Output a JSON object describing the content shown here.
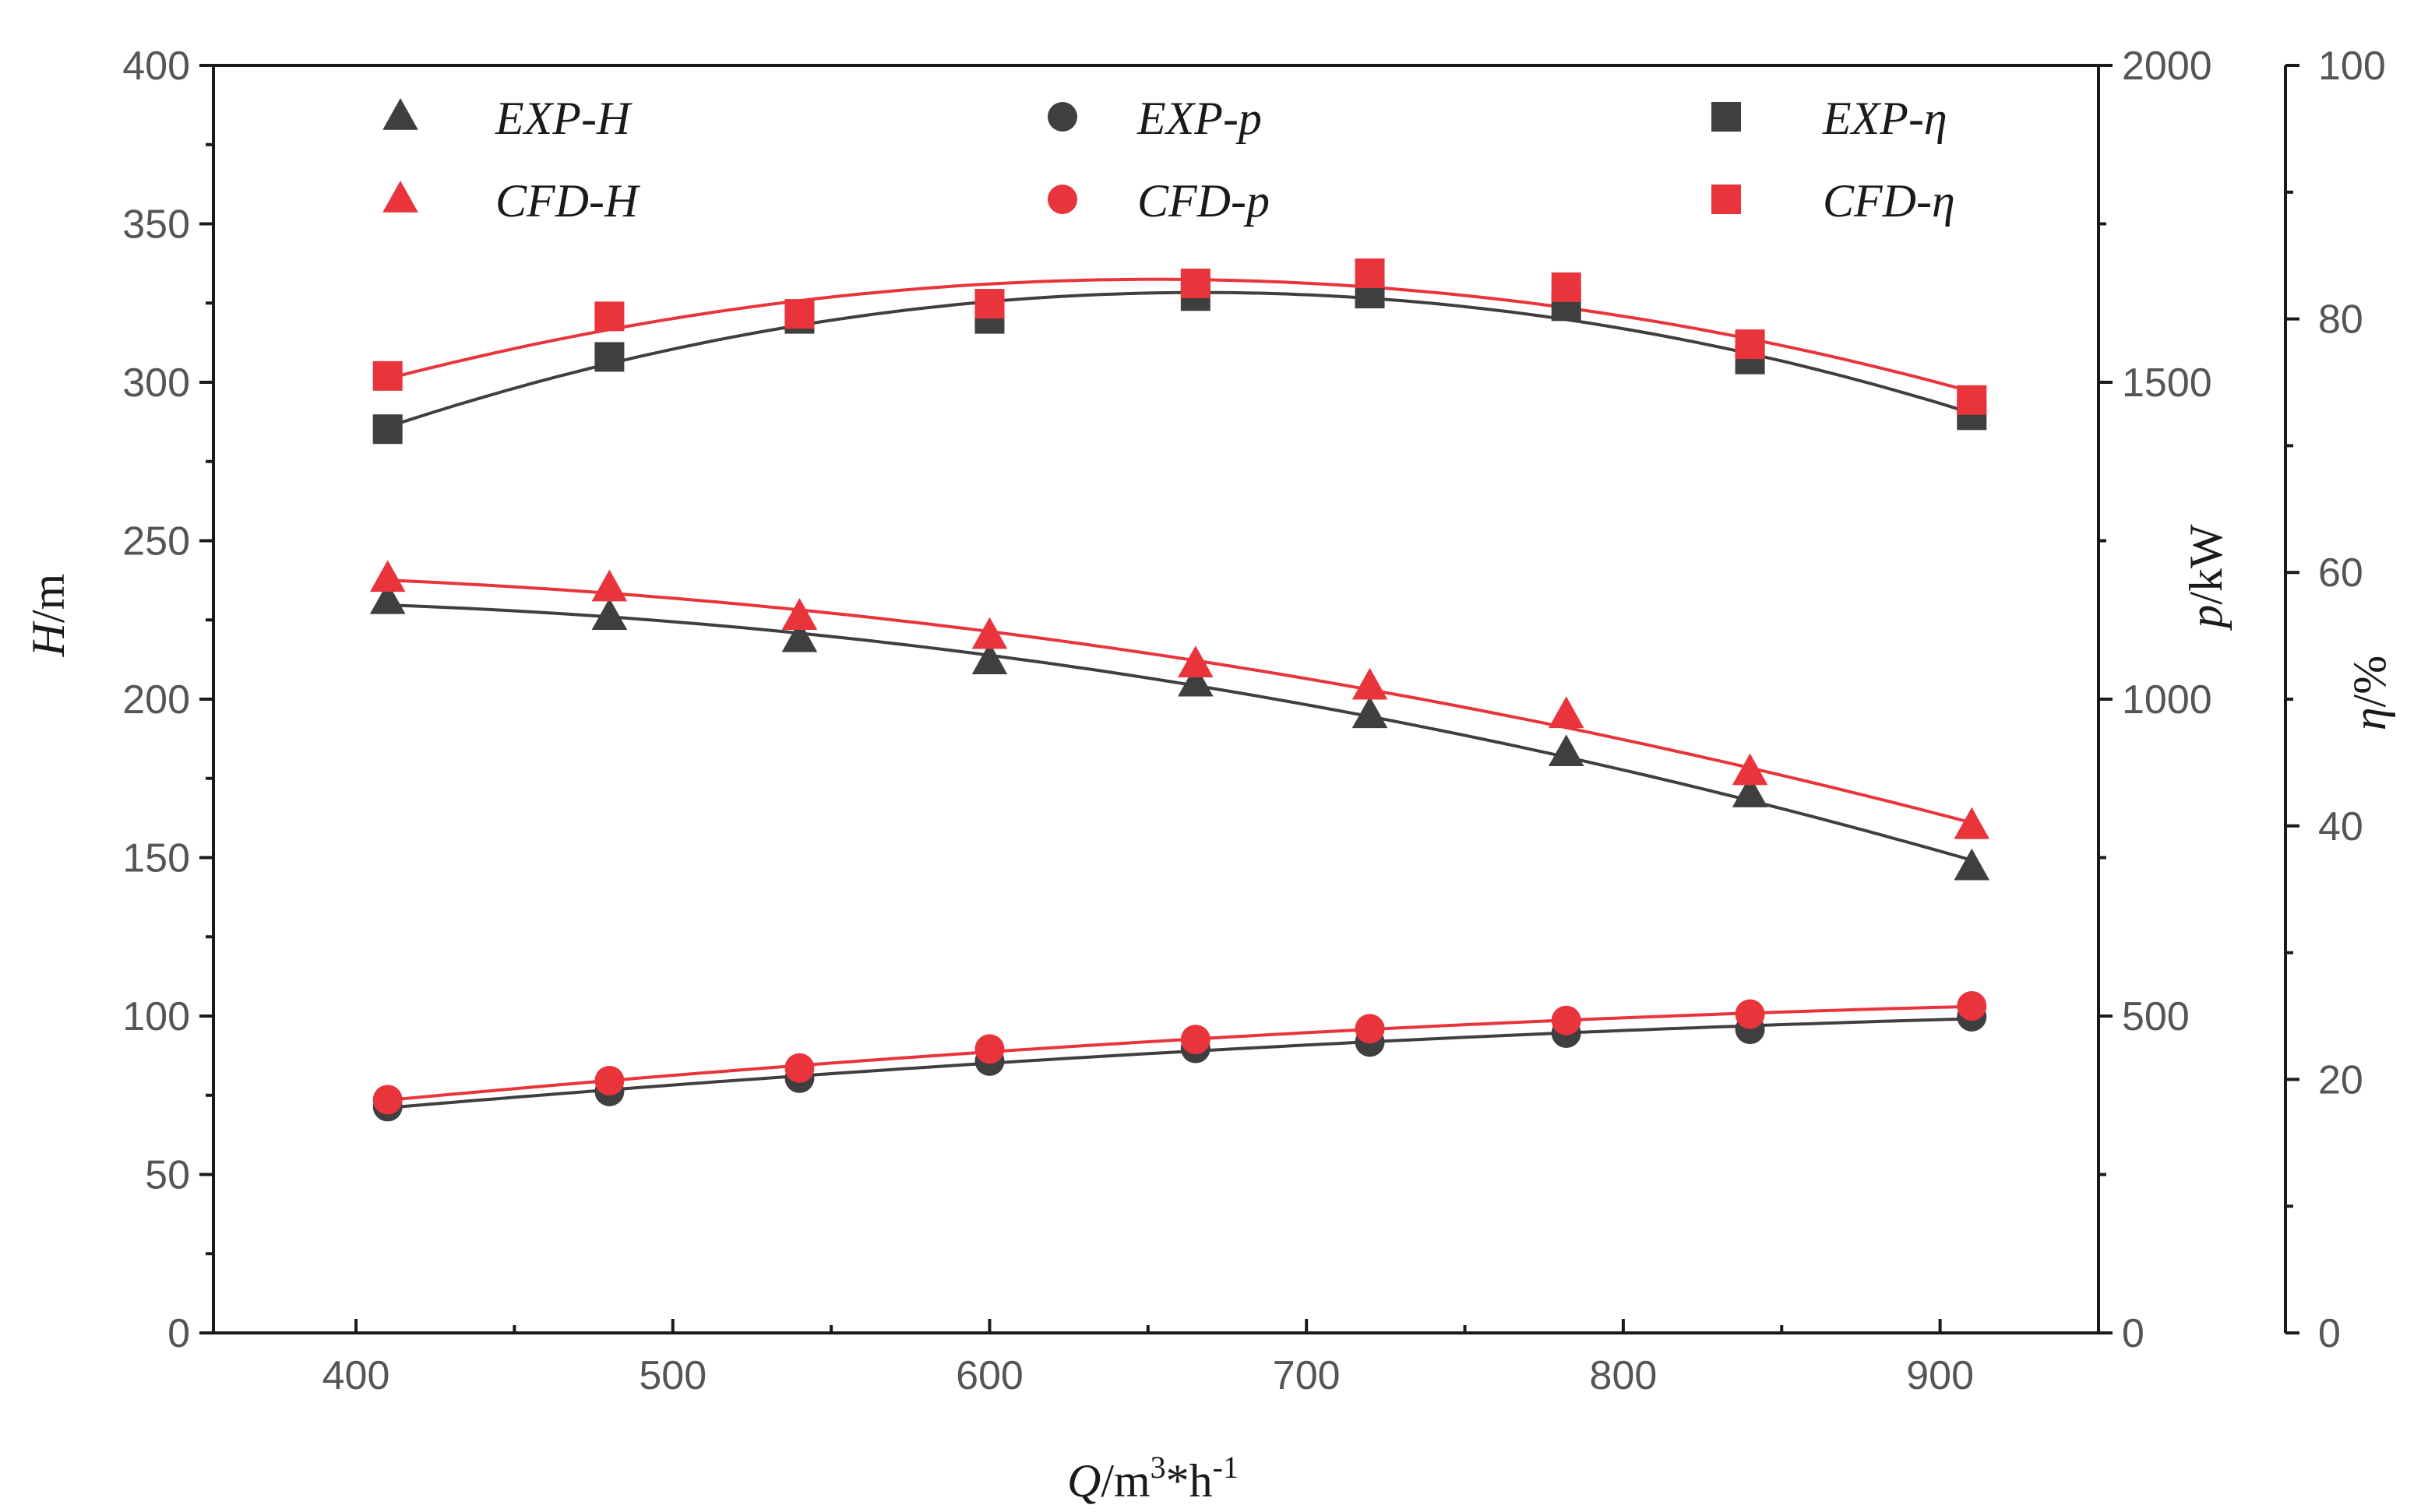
{
  "chart_data": {
    "type": "line",
    "x_axis": {
      "label_parts": {
        "var": "Q",
        "unit": "/m",
        "sup1": "3",
        "mid": "*h",
        "sup2": "-1"
      },
      "ticks": [
        "400",
        "500",
        "600",
        "700",
        "800",
        "900"
      ],
      "range": [
        355,
        950
      ]
    },
    "y_left": {
      "label_parts": {
        "var": "H",
        "unit": "/m"
      },
      "ticks": [
        "0",
        "50",
        "100",
        "150",
        "200",
        "250",
        "300",
        "350",
        "400"
      ],
      "range": [
        0,
        400
      ]
    },
    "y_right1": {
      "label_parts": {
        "var": "p",
        "unit": "/kW"
      },
      "ticks": [
        "0",
        "500",
        "1000",
        "1500",
        "2000"
      ],
      "range": [
        0,
        2000
      ]
    },
    "y_right2": {
      "label_parts": {
        "var": "η",
        "unit": "/%"
      },
      "ticks": [
        "0",
        "20",
        "40",
        "60",
        "80",
        "100"
      ],
      "range": [
        0,
        100
      ]
    },
    "x": [
      410,
      480,
      540,
      600,
      665,
      720,
      782,
      840,
      910
    ],
    "series": [
      {
        "name": "EXP-H",
        "axis": "left",
        "marker": "triangle",
        "color": "#3f3f3f",
        "values": [
          231,
          226,
          219,
          212,
          205,
          195,
          183,
          170,
          147
        ]
      },
      {
        "name": "CFD-H",
        "axis": "left",
        "marker": "triangle",
        "color": "#e8343a",
        "values": [
          238,
          235,
          226,
          220,
          211,
          204,
          195,
          177,
          160
        ]
      },
      {
        "name": "EXP-p",
        "axis": "right1",
        "marker": "circle",
        "color": "#3f3f3f",
        "values": [
          357,
          381,
          402,
          429,
          449,
          459,
          473,
          479,
          499
        ]
      },
      {
        "name": "CFD-p",
        "axis": "right1",
        "marker": "circle",
        "color": "#e8343a",
        "values": [
          368,
          398,
          418,
          448,
          463,
          480,
          493,
          503,
          516
        ]
      },
      {
        "name": "EXP-η",
        "axis": "right2",
        "marker": "square",
        "color": "#3f3f3f",
        "values": [
          71.3,
          77.0,
          80.0,
          80.0,
          81.8,
          82.0,
          81.0,
          76.8,
          72.4
        ]
      },
      {
        "name": "CFD-η",
        "axis": "right2",
        "marker": "square",
        "color": "#e8343a",
        "values": [
          75.5,
          80.2,
          80.4,
          81.2,
          82.8,
          83.6,
          82.5,
          78.0,
          73.6
        ]
      }
    ],
    "legend": {
      "placement": "top",
      "entries": [
        "EXP-H",
        "EXP-p",
        "EXP-η",
        "CFD-H",
        "CFD-p",
        "CFD-η"
      ]
    }
  }
}
